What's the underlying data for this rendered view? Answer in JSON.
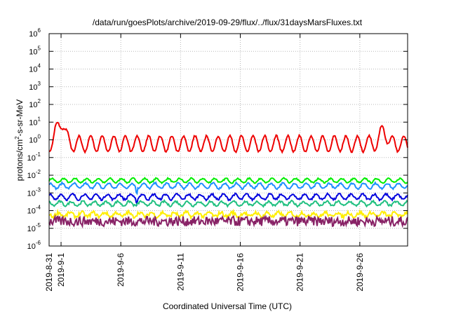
{
  "chart_data": {
    "type": "line",
    "title": "/data/run/goesPlots/archive/2019-09-29/flux/../flux/31daysMarsFluxes.txt",
    "xlabel": "Coordinated Universal Time (UTC)",
    "ylabel_parts": [
      "protons/cm",
      "2",
      "-s-sr-MeV"
    ],
    "x_range_days": [
      0,
      30.0
    ],
    "y_scale": "log",
    "ylim": [
      1e-06,
      1000000.0
    ],
    "y_ticks": [
      {
        "base": "10",
        "exp": "-6",
        "value": 1e-06
      },
      {
        "base": "10",
        "exp": "-5",
        "value": 1e-05
      },
      {
        "base": "10",
        "exp": "-4",
        "value": 0.0001
      },
      {
        "base": "10",
        "exp": "-3",
        "value": 0.001
      },
      {
        "base": "10",
        "exp": "-2",
        "value": 0.01
      },
      {
        "base": "10",
        "exp": "-1",
        "value": 0.1
      },
      {
        "base": "10",
        "exp": "0",
        "value": 1
      },
      {
        "base": "10",
        "exp": "1",
        "value": 10
      },
      {
        "base": "10",
        "exp": "2",
        "value": 100
      },
      {
        "base": "10",
        "exp": "3",
        "value": 1000
      },
      {
        "base": "10",
        "exp": "4",
        "value": 10000
      },
      {
        "base": "10",
        "exp": "5",
        "value": 100000
      },
      {
        "base": "10",
        "exp": "6",
        "value": 1000000
      }
    ],
    "x_ticks": [
      {
        "label": "2019-8-31",
        "day": 0.0
      },
      {
        "label": "2019-9-1",
        "day": 1.0
      },
      {
        "label": "2019-9-6",
        "day": 6.0
      },
      {
        "label": "2019-9-11",
        "day": 11.0
      },
      {
        "label": "2019-9-16",
        "day": 16.0
      },
      {
        "label": "2019-9-21",
        "day": 21.0
      },
      {
        "label": "2019-9-26",
        "day": 26.0
      }
    ],
    "grid": true,
    "series": [
      {
        "color": "#00ee00",
        "base": 0.005,
        "osc": 0.12,
        "noise": 0.04,
        "dip_day": 7.3,
        "dip_mag": 0
      },
      {
        "color": "#1e90ff",
        "base": 0.0025,
        "osc": 0.15,
        "noise": 0.05,
        "dip_day": 7.3,
        "dip_mag": 0.25
      },
      {
        "color": "#0000dd",
        "base": 0.0006,
        "osc": 0.15,
        "noise": 0.06,
        "dip_day": 7.3,
        "dip_mag": 0.2
      },
      {
        "color": "#20c080",
        "base": 0.00025,
        "osc": 0.12,
        "noise": 0.06,
        "dip_day": 7.3,
        "dip_mag": 0
      },
      {
        "color": "#ffee00",
        "base": 6e-05,
        "osc": 0.12,
        "noise": 0.1,
        "dip_day": 7.3,
        "dip_mag": 0
      },
      {
        "color": "#882266",
        "base": 2.5e-05,
        "osc": 0.0,
        "noise": 0.28,
        "dip_day": 7.3,
        "dip_mag": 0
      },
      {
        "color": "#ee0000",
        "base": 0.6,
        "osc": 0.45,
        "noise": 0.05,
        "dip_day": 7.3,
        "dip_mag": 0
      }
    ],
    "red_peaks": [
      {
        "day": 1.1,
        "value": 10
      },
      {
        "day": 0.7,
        "value": 3
      },
      {
        "day": 28.0,
        "value": 5
      }
    ]
  }
}
